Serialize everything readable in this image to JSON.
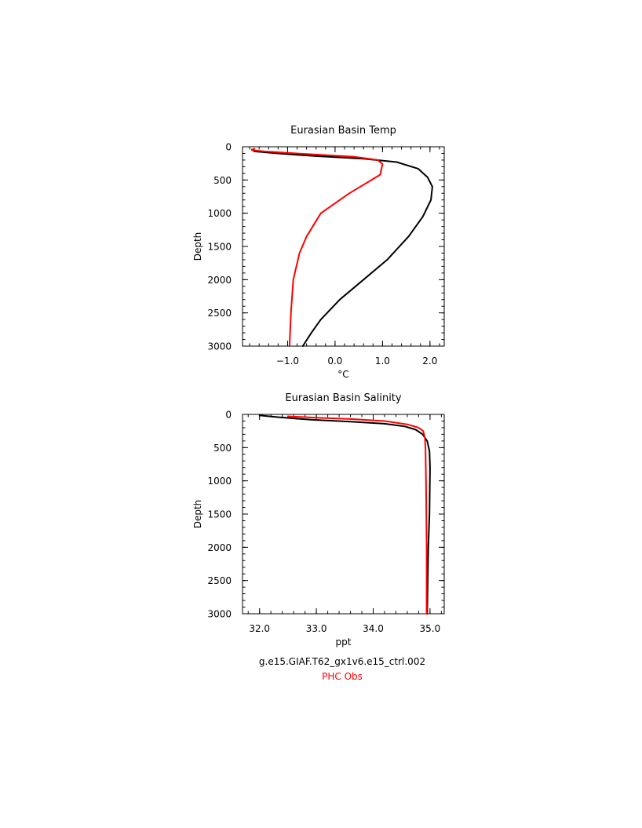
{
  "chart_data": [
    {
      "type": "line",
      "title": "Eurasian Basin Temp",
      "xlabel": "°C",
      "ylabel": "Depth",
      "xlim": [
        -1.95,
        2.3
      ],
      "ylim": [
        0,
        3000
      ],
      "y_inverted": true,
      "xticks": [
        -1.0,
        0.0,
        1.0,
        2.0
      ],
      "xtick_labels": [
        "−1.0",
        "0.0",
        "1.0",
        "2.0"
      ],
      "yticks": [
        0,
        500,
        1000,
        1500,
        2000,
        2500,
        3000
      ],
      "ytick_labels": [
        "0",
        "500",
        "1000",
        "1500",
        "2000",
        "2500",
        "3000"
      ],
      "series": [
        {
          "name": "g.e15.GIAF.T62_gx1v6.e15_ctrl.002",
          "color": "#000000",
          "points": [
            [
              -1.75,
              40
            ],
            [
              -1.7,
              70
            ],
            [
              -1.2,
              100
            ],
            [
              -0.4,
              140
            ],
            [
              0.6,
              180
            ],
            [
              1.3,
              230
            ],
            [
              1.75,
              330
            ],
            [
              1.95,
              460
            ],
            [
              2.05,
              600
            ],
            [
              2.02,
              800
            ],
            [
              1.85,
              1050
            ],
            [
              1.55,
              1350
            ],
            [
              1.1,
              1700
            ],
            [
              0.6,
              2000
            ],
            [
              0.1,
              2300
            ],
            [
              -0.3,
              2600
            ],
            [
              -0.5,
              2800
            ],
            [
              -0.68,
              3000
            ]
          ]
        },
        {
          "name": "PHC Obs",
          "color": "#ff0000",
          "points": [
            [
              -1.7,
              30
            ],
            [
              -1.75,
              50
            ],
            [
              -1.5,
              70
            ],
            [
              -0.6,
              110
            ],
            [
              0.4,
              150
            ],
            [
              0.9,
              200
            ],
            [
              1.0,
              260
            ],
            [
              0.95,
              420
            ],
            [
              0.3,
              700
            ],
            [
              -0.3,
              1000
            ],
            [
              -0.6,
              1350
            ],
            [
              -0.75,
              1600
            ],
            [
              -0.88,
              2000
            ],
            [
              -0.93,
              2500
            ],
            [
              -0.96,
              3000
            ]
          ]
        }
      ],
      "legend": "none"
    },
    {
      "type": "line",
      "title": "Eurasian Basin Salinity",
      "xlabel": "ppt",
      "ylabel": "Depth",
      "xlim": [
        31.7,
        35.25
      ],
      "ylim": [
        0,
        3000
      ],
      "y_inverted": true,
      "xticks": [
        32.0,
        33.0,
        34.0,
        35.0
      ],
      "xtick_labels": [
        "32.0",
        "33.0",
        "34.0",
        "35.0"
      ],
      "yticks": [
        0,
        500,
        1000,
        1500,
        2000,
        2500,
        3000
      ],
      "ytick_labels": [
        "0",
        "500",
        "1000",
        "1500",
        "2000",
        "2500",
        "3000"
      ],
      "series": [
        {
          "name": "g.e15.GIAF.T62_gx1v6.e15_ctrl.002",
          "color": "#000000",
          "points": [
            [
              32.0,
              15
            ],
            [
              32.3,
              40
            ],
            [
              32.9,
              80
            ],
            [
              33.6,
              110
            ],
            [
              34.2,
              140
            ],
            [
              34.55,
              180
            ],
            [
              34.75,
              230
            ],
            [
              34.87,
              300
            ],
            [
              34.95,
              400
            ],
            [
              34.99,
              550
            ],
            [
              35.0,
              800
            ],
            [
              34.99,
              1500
            ],
            [
              34.97,
              2000
            ],
            [
              34.96,
              2500
            ],
            [
              34.95,
              3000
            ]
          ]
        },
        {
          "name": "PHC Obs",
          "color": "#ff0000",
          "points": [
            [
              32.5,
              30
            ],
            [
              33.0,
              50
            ],
            [
              33.6,
              70
            ],
            [
              34.2,
              100
            ],
            [
              34.6,
              150
            ],
            [
              34.8,
              200
            ],
            [
              34.88,
              250
            ],
            [
              34.91,
              350
            ],
            [
              34.92,
              500
            ],
            [
              34.93,
              1000
            ],
            [
              34.94,
              2000
            ],
            [
              34.94,
              3000
            ]
          ]
        }
      ],
      "legend": "none"
    }
  ],
  "captions": [
    {
      "text": "g.e15.GIAF.T62_gx1v6.e15_ctrl.002",
      "color": "#000000"
    },
    {
      "text": "PHC Obs",
      "color": "#ff0000"
    }
  ]
}
